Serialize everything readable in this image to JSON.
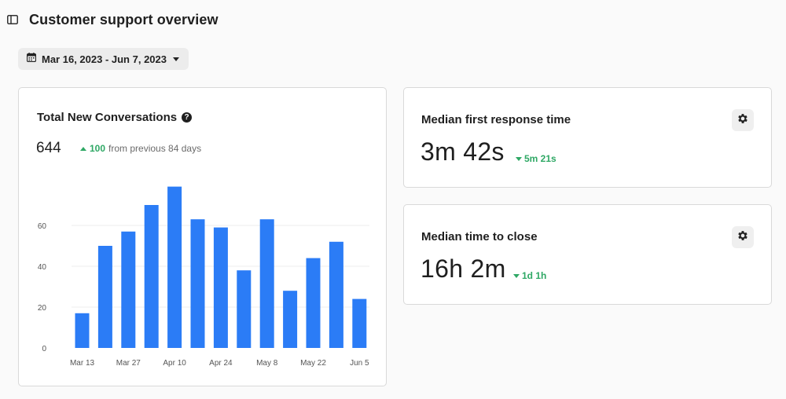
{
  "header": {
    "title": "Customer support overview"
  },
  "date_range": {
    "label": "Mar 16, 2023 - Jun 7, 2023"
  },
  "conversations": {
    "title": "Total New Conversations",
    "help_glyph": "?",
    "total": "644",
    "delta": "100",
    "delta_note": "from previous 84 days"
  },
  "metrics": {
    "first_response": {
      "title": "Median first response time",
      "value": "3m 42s",
      "delta": "5m 21s"
    },
    "time_to_close": {
      "title": "Median time to close",
      "value": "16h 2m",
      "delta": "1d 1h"
    }
  },
  "colors": {
    "bar": "#2b7cf6",
    "positive": "#2fa865"
  },
  "icons": [
    "sidebar-toggle-icon",
    "calendar-icon",
    "chevron-down-icon",
    "help-icon",
    "arrow-up-icon",
    "arrow-down-icon",
    "gear-icon"
  ],
  "chart_data": {
    "type": "bar",
    "title": "Total New Conversations",
    "x_tick_labels": [
      "Mar 13",
      "Mar 27",
      "Apr 10",
      "Apr 24",
      "May 8",
      "May 22",
      "Jun 5"
    ],
    "y_ticks": [
      0,
      20,
      40,
      60
    ],
    "ylim": [
      0,
      80
    ],
    "grid": true,
    "values": [
      17,
      50,
      57,
      70,
      79,
      63,
      59,
      38,
      63,
      28,
      44,
      52,
      24
    ]
  }
}
